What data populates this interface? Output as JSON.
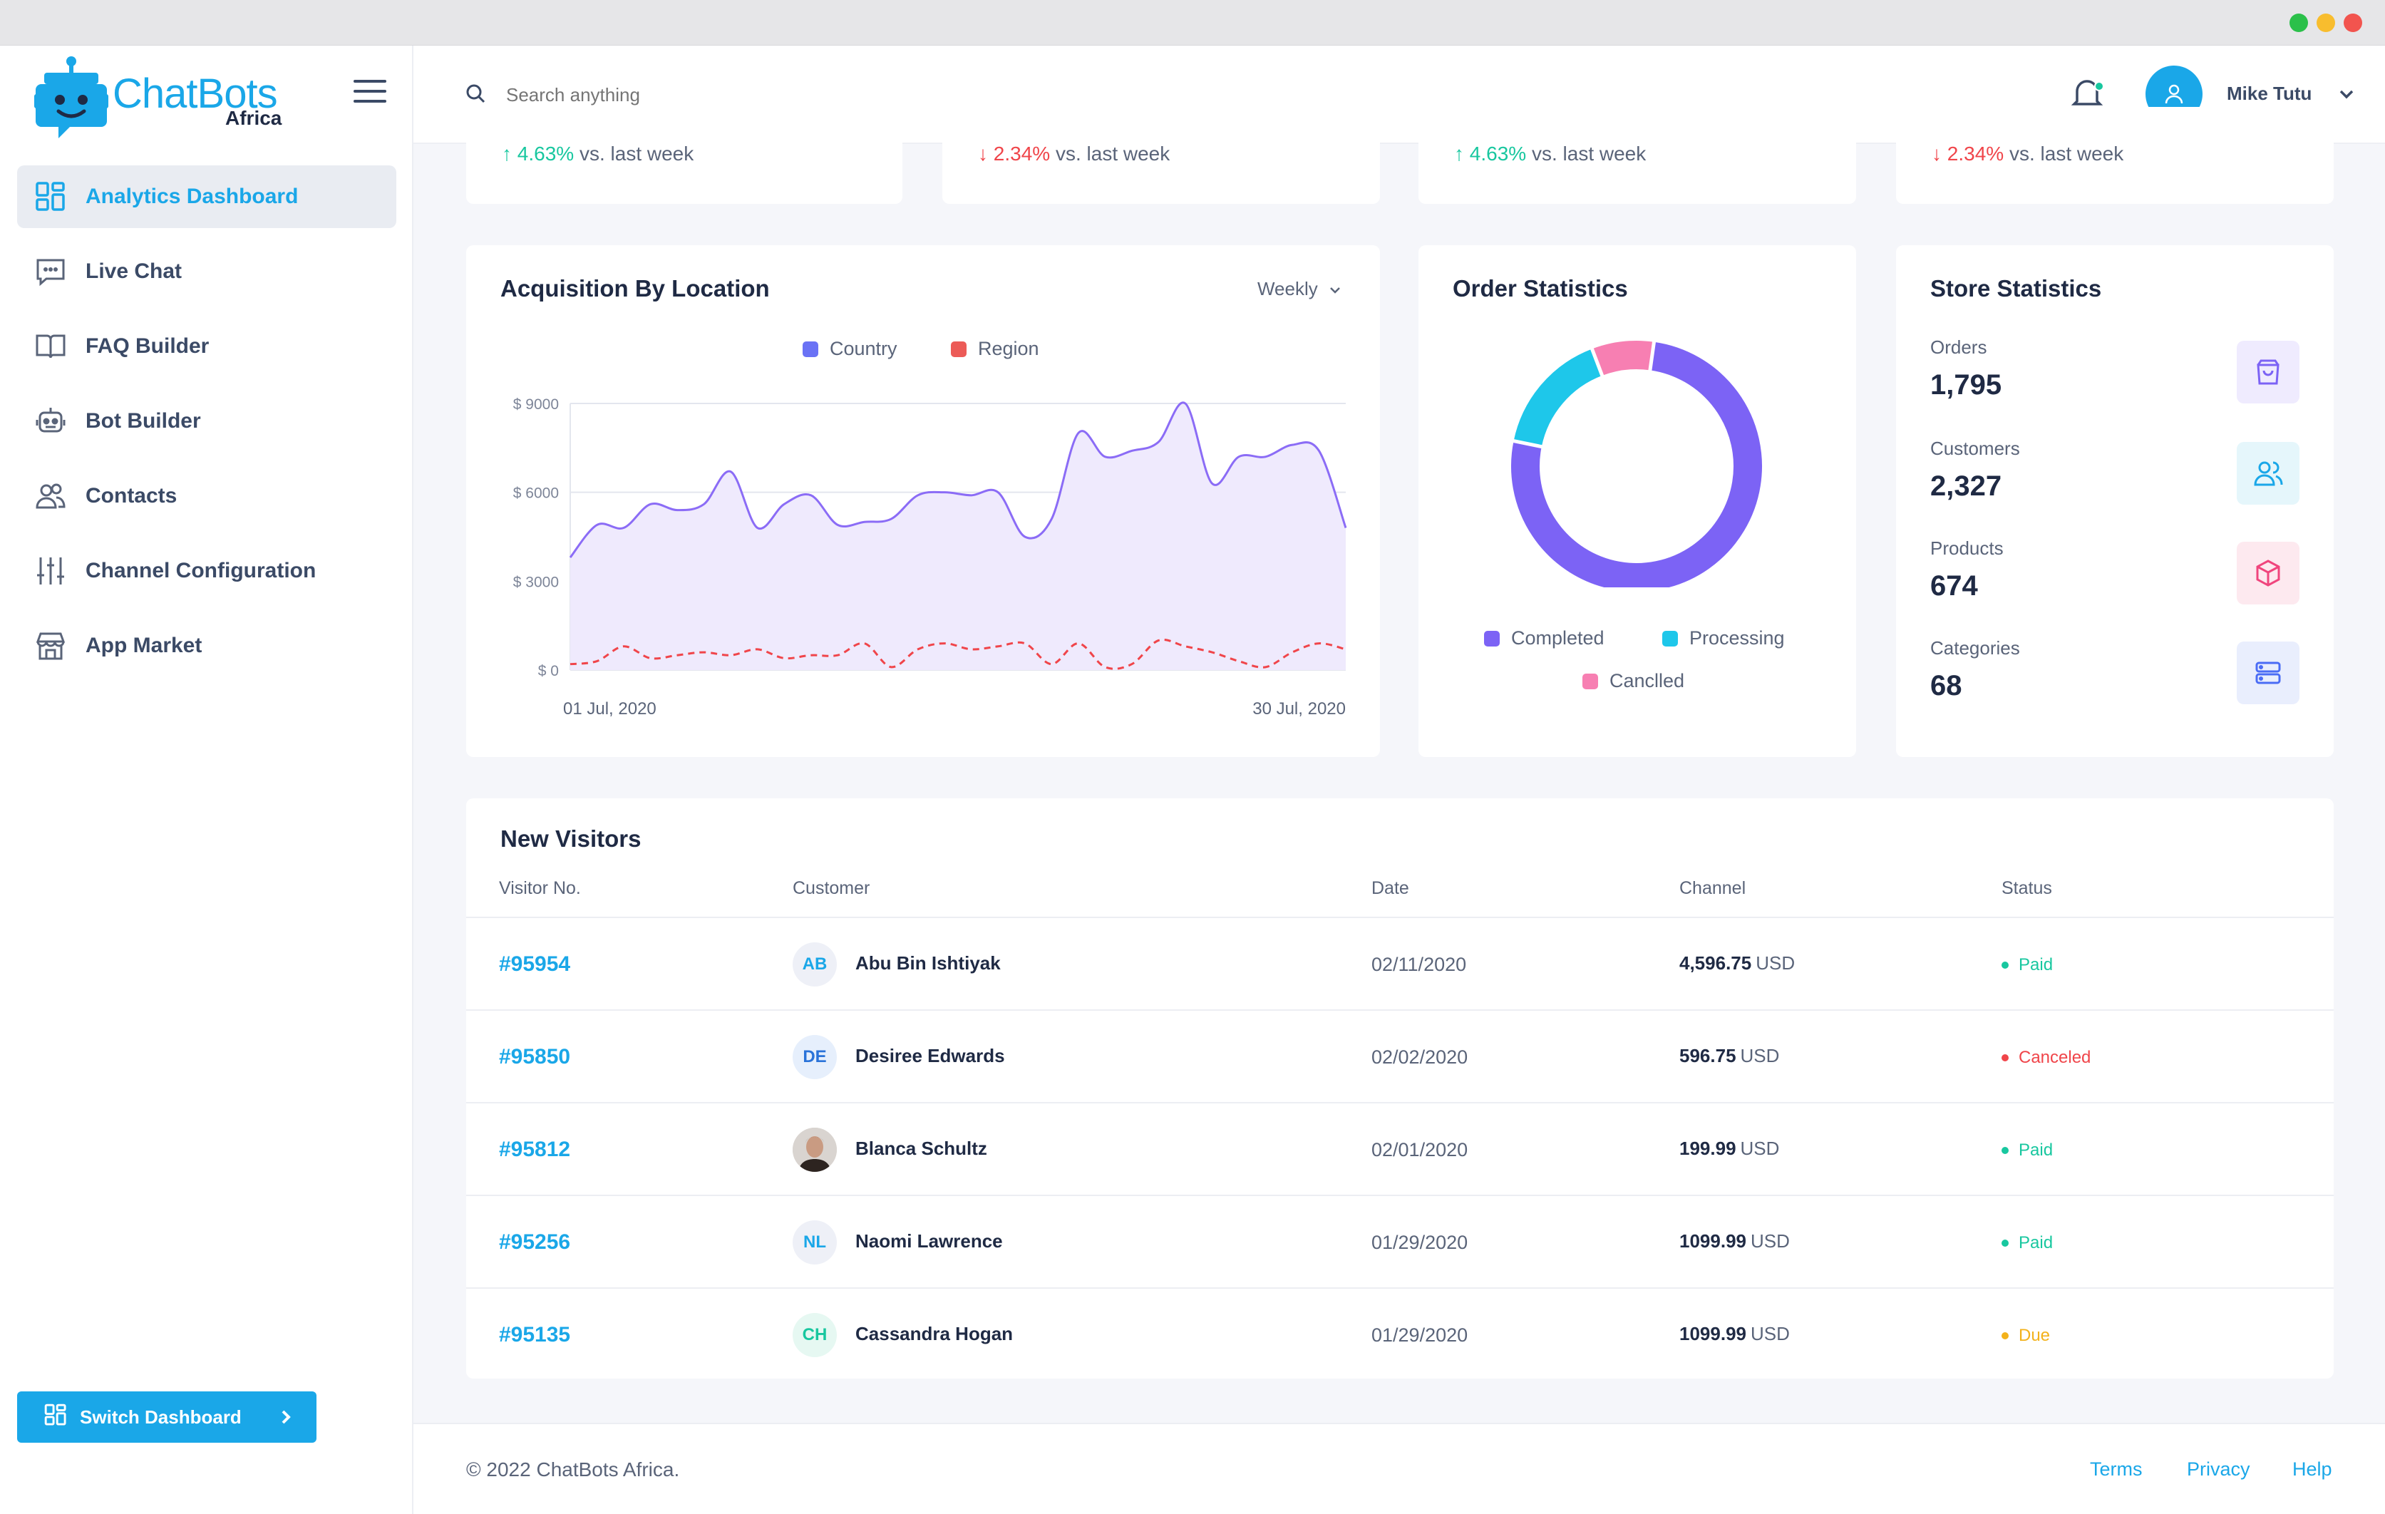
{
  "app": {
    "logo_main": "ChatBots",
    "logo_sub": "Africa"
  },
  "sidebar": {
    "items": [
      {
        "label": "Analytics Dashboard",
        "icon": "grid-icon",
        "active": true
      },
      {
        "label": "Live Chat",
        "icon": "chat-icon"
      },
      {
        "label": "FAQ Builder",
        "icon": "book-icon"
      },
      {
        "label": "Bot Builder",
        "icon": "robot-icon"
      },
      {
        "label": "Contacts",
        "icon": "users-icon"
      },
      {
        "label": "Channel Configuration",
        "icon": "sliders-icon"
      },
      {
        "label": "App Market",
        "icon": "store-icon"
      }
    ],
    "switch_label": "Switch Dashboard"
  },
  "topbar": {
    "search_placeholder": "Search anything",
    "user_name": "Mike Tutu"
  },
  "kpis": [
    {
      "arrow": "↑",
      "change": "4.63%",
      "suffix": "vs. last week",
      "trend": "up"
    },
    {
      "arrow": "↓",
      "change": "2.34%",
      "suffix": "vs. last week",
      "trend": "down"
    },
    {
      "arrow": "↑",
      "change": "4.63%",
      "suffix": "vs. last week",
      "trend": "up"
    },
    {
      "arrow": "↓",
      "change": "2.34%",
      "suffix": "vs. last week",
      "trend": "down"
    }
  ],
  "acquisition": {
    "title": "Acquisition By Location",
    "period": "Weekly",
    "legend": [
      "Country",
      "Region"
    ],
    "colors": {
      "country": "#8b6cf6",
      "region": "#f0454a"
    }
  },
  "order_stats": {
    "title": "Order Statistics",
    "legend": [
      "Completed",
      "Processing",
      "Canclled"
    ],
    "colors": {
      "completed": "#7c63f5",
      "processing": "#1ec7ea",
      "cancelled": "#f77fb2"
    }
  },
  "store_stats": {
    "title": "Store Statistics",
    "items": [
      {
        "label": "Orders",
        "value": "1,795",
        "icon": "bag-icon",
        "color": "#7c63f5",
        "bg": "#efebfe"
      },
      {
        "label": "Customers",
        "value": "2,327",
        "icon": "users-icon",
        "color": "#1aa7e8",
        "bg": "#e5f6fb"
      },
      {
        "label": "Products",
        "value": "674",
        "icon": "box-icon",
        "color": "#f0457d",
        "bg": "#fde9ef"
      },
      {
        "label": "Categories",
        "value": "68",
        "icon": "server-icon",
        "color": "#4a6cf5",
        "bg": "#e9eefd"
      }
    ]
  },
  "visitors": {
    "title": "New Visitors",
    "columns": [
      "Visitor No.",
      "Customer",
      "Date",
      "Channel",
      "Status"
    ],
    "rows": [
      {
        "no": "#95954",
        "initials": "AB",
        "name": "Abu Bin Ishtiyak",
        "date": "02/11/2020",
        "amount": "4,596.75",
        "currency": "USD",
        "status": "Paid",
        "avatar_bg": "#eef0f7",
        "avatar_fg": "#1aa7e8",
        "status_color": "#18c79f"
      },
      {
        "no": "#95850",
        "initials": "DE",
        "name": "Desiree Edwards",
        "date": "02/02/2020",
        "amount": "596.75",
        "currency": "USD",
        "status": "Canceled",
        "avatar_bg": "#e6effc",
        "avatar_fg": "#2a73d9",
        "status_color": "#f0454a"
      },
      {
        "no": "#95812",
        "initials": "",
        "name": "Blanca Schultz",
        "date": "02/01/2020",
        "amount": "199.99",
        "currency": "USD",
        "status": "Paid",
        "avatar_bg": "#6b5b55",
        "avatar_fg": "#ffffff",
        "status_color": "#18c79f"
      },
      {
        "no": "#95256",
        "initials": "NL",
        "name": "Naomi Lawrence",
        "date": "01/29/2020",
        "amount": "1099.99",
        "currency": "USD",
        "status": "Paid",
        "avatar_bg": "#eef0f7",
        "avatar_fg": "#1aa7e8",
        "status_color": "#18c79f"
      },
      {
        "no": "#95135",
        "initials": "CH",
        "name": "Cassandra Hogan",
        "date": "01/29/2020",
        "amount": "1099.99",
        "currency": "USD",
        "status": "Due",
        "avatar_bg": "#e6f8f2",
        "avatar_fg": "#18c79f",
        "status_color": "#f3b21c"
      }
    ]
  },
  "footer": {
    "copyright": "© 2022 ChatBots Africa.",
    "links": [
      "Terms",
      "Privacy",
      "Help"
    ]
  },
  "chart_data": [
    {
      "type": "area",
      "title": "Acquisition By Location",
      "xlabel": "",
      "ylabel": "",
      "x_tick_labels": [
        "01 Jul, 2020",
        "30 Jul, 2020"
      ],
      "y_tick_labels": [
        "$ 0",
        "$ 3000",
        "$ 6000",
        "$ 9000"
      ],
      "ylim": [
        0,
        9000
      ],
      "grid": true,
      "legend_position": "top-center",
      "series": [
        {
          "name": "Country",
          "style": "solid-area",
          "values": [
            3800,
            4900,
            4800,
            5600,
            5400,
            5600,
            6700,
            4800,
            5600,
            5900,
            4900,
            5000,
            5100,
            5900,
            6000,
            5900,
            6000,
            4500,
            5100,
            8000,
            7200,
            7400,
            7700,
            9000,
            6300,
            7200,
            7200,
            7600,
            7400,
            4800
          ]
        },
        {
          "name": "Region",
          "style": "dashed",
          "values": [
            200,
            300,
            800,
            400,
            500,
            600,
            500,
            700,
            400,
            500,
            500,
            900,
            100,
            700,
            900,
            700,
            800,
            900,
            200,
            900,
            100,
            200,
            1000,
            800,
            600,
            300,
            100,
            600,
            900,
            700
          ]
        }
      ]
    },
    {
      "type": "pie",
      "title": "Order Statistics",
      "donut": true,
      "legend_position": "bottom",
      "series": [
        {
          "name": "Completed",
          "value": 76
        },
        {
          "name": "Processing",
          "value": 16
        },
        {
          "name": "Canclled",
          "value": 8
        }
      ]
    }
  ]
}
